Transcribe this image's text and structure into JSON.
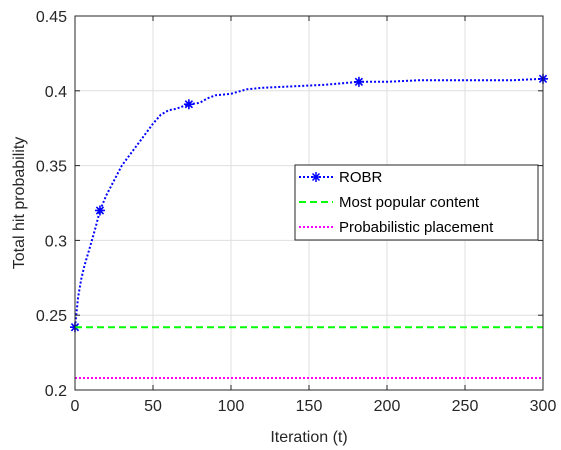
{
  "chart_data": {
    "type": "line",
    "xlabel": "Iteration (t)",
    "ylabel": "Total hit probability",
    "xlim": [
      0,
      300
    ],
    "ylim": [
      0.2,
      0.45
    ],
    "xticks": [
      "0",
      "50",
      "100",
      "150",
      "200",
      "250",
      "300"
    ],
    "yticks": [
      "0.2",
      "0.25",
      "0.3",
      "0.35",
      "0.4",
      "0.45"
    ],
    "grid": true,
    "legend_position": "center-right",
    "series": [
      {
        "name": "ROBR",
        "color": "#0000ff",
        "line_style": "dotted",
        "marker": "asterisk",
        "x": [
          0,
          2,
          4,
          6,
          8,
          10,
          13,
          16,
          20,
          25,
          30,
          35,
          40,
          45,
          50,
          55,
          60,
          65,
          70,
          73,
          80,
          85,
          90,
          100,
          110,
          120,
          140,
          160,
          182,
          200,
          220,
          250,
          280,
          300
        ],
        "y": [
          0.242,
          0.262,
          0.274,
          0.283,
          0.29,
          0.297,
          0.308,
          0.32,
          0.33,
          0.34,
          0.35,
          0.357,
          0.364,
          0.371,
          0.378,
          0.384,
          0.387,
          0.388,
          0.39,
          0.391,
          0.392,
          0.395,
          0.397,
          0.398,
          0.401,
          0.402,
          0.403,
          0.404,
          0.406,
          0.406,
          0.407,
          0.407,
          0.407,
          0.408
        ],
        "marker_x": [
          0,
          16,
          73,
          182,
          300
        ],
        "marker_y": [
          0.242,
          0.32,
          0.391,
          0.406,
          0.408
        ]
      },
      {
        "name": "Most popular content",
        "color": "#00ff00",
        "line_style": "dashed",
        "x": [
          0,
          300
        ],
        "y": [
          0.242,
          0.242
        ]
      },
      {
        "name": "Probabilistic placement",
        "color": "#ff00ff",
        "line_style": "dotted",
        "x": [
          0,
          300
        ],
        "y": [
          0.208,
          0.208
        ]
      }
    ]
  }
}
